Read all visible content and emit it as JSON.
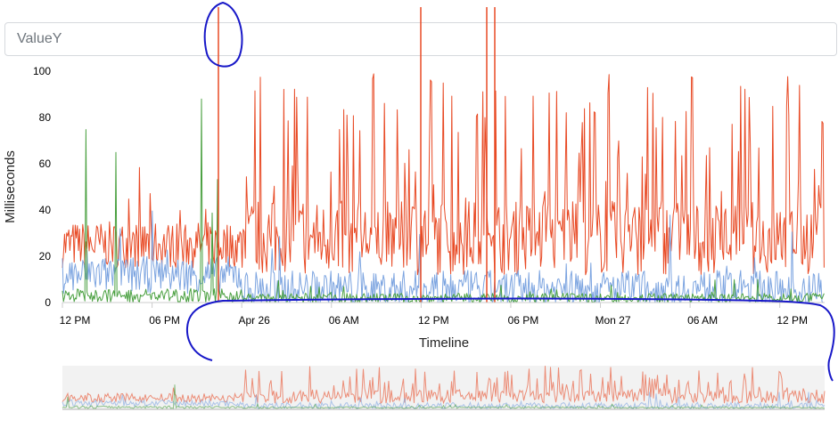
{
  "selector": {
    "value": "ValueY"
  },
  "chart_data": {
    "type": "line",
    "xlabel": "Timeline",
    "ylabel": "Milliseconds",
    "ylim": [
      0,
      100
    ],
    "yticks": [
      0,
      20,
      40,
      60,
      80,
      100
    ],
    "xticks": [
      "12 PM",
      "06 PM",
      "Apr 26",
      "06 AM",
      "12 PM",
      "06 PM",
      "Mon 27",
      "06 AM",
      "12 PM"
    ],
    "x_range": [
      "Apr 25 12:00",
      "Apr 27 15:00"
    ],
    "grid": false,
    "legend": "none",
    "series": [
      {
        "color": "#e84a25",
        "segments": [
          {
            "label": "before Apr 26 00:00",
            "baseline": 25,
            "spread": 10,
            "max": 60
          },
          {
            "label": "after Apr 26 00:00",
            "baseline": 28,
            "spread": 16,
            "max": 100
          }
        ]
      },
      {
        "color": "#7ca4e0",
        "segments": [
          {
            "label": "before Apr 26 00:00",
            "baseline": 12,
            "spread": 8,
            "max": 40
          },
          {
            "label": "after Apr 26 00:00",
            "baseline": 6,
            "spread": 8,
            "max": 40
          }
        ]
      },
      {
        "color": "#4aa040",
        "segments": [
          {
            "label": "before Apr 26 00:00",
            "baseline": 3,
            "spread": 3,
            "max": 98
          },
          {
            "label": "after Apr 26 00:00",
            "baseline": 2,
            "spread": 2,
            "max": 10
          }
        ]
      }
    ],
    "navigator": {
      "type": "area-overview",
      "selection": "full range"
    },
    "annotations": [
      {
        "type": "hand-drawn circle",
        "color": "#1818c8",
        "near": "start of spike region"
      },
      {
        "type": "hand-drawn bracket",
        "color": "#1818c8",
        "near": "x axis, Apr 26 to end"
      }
    ]
  }
}
